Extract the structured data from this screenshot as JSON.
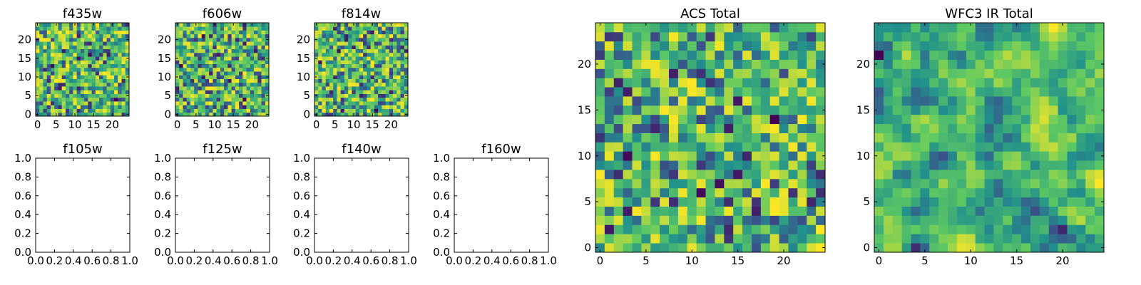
{
  "figure": {
    "background": "#ffffff"
  },
  "colormap": {
    "name": "viridis",
    "stops": [
      "#440154",
      "#3b528b",
      "#21918c",
      "#5ec962",
      "#fde725"
    ]
  },
  "chart_data": [
    {
      "type": "heatmap",
      "title": "f435w",
      "grid": false,
      "shape": [
        25,
        25
      ],
      "xlim": [
        -0.5,
        24.5
      ],
      "ylim": [
        -0.5,
        24.5
      ],
      "xticks": [
        "0",
        "5",
        "10",
        "15",
        "20"
      ],
      "yticks": [
        "0",
        "5",
        "10",
        "15",
        "20"
      ],
      "seed": 11,
      "field": "uniform-noise"
    },
    {
      "type": "heatmap",
      "title": "f606w",
      "grid": false,
      "shape": [
        25,
        25
      ],
      "xlim": [
        -0.5,
        24.5
      ],
      "ylim": [
        -0.5,
        24.5
      ],
      "xticks": [
        "0",
        "5",
        "10",
        "15",
        "20"
      ],
      "yticks": [
        "0",
        "5",
        "10",
        "15",
        "20"
      ],
      "seed": 23,
      "field": "uniform-noise"
    },
    {
      "type": "heatmap",
      "title": "f814w",
      "grid": false,
      "shape": [
        25,
        25
      ],
      "xlim": [
        -0.5,
        24.5
      ],
      "ylim": [
        -0.5,
        24.5
      ],
      "xticks": [
        "0",
        "5",
        "10",
        "15",
        "20"
      ],
      "yticks": [
        "0",
        "5",
        "10",
        "15",
        "20"
      ],
      "seed": 37,
      "field": "uniform-noise"
    },
    {
      "type": "empty",
      "title": "f105w",
      "xlim": [
        0,
        1
      ],
      "ylim": [
        0,
        1
      ],
      "xticks": [
        "0.0",
        "0.2",
        "0.4",
        "0.6",
        "0.8",
        "1.0"
      ],
      "yticks": [
        "0.0",
        "0.2",
        "0.4",
        "0.6",
        "0.8",
        "1.0"
      ]
    },
    {
      "type": "empty",
      "title": "f125w",
      "xlim": [
        0,
        1
      ],
      "ylim": [
        0,
        1
      ],
      "xticks": [
        "0.0",
        "0.2",
        "0.4",
        "0.6",
        "0.8",
        "1.0"
      ],
      "yticks": [
        "0.0",
        "0.2",
        "0.4",
        "0.6",
        "0.8",
        "1.0"
      ]
    },
    {
      "type": "empty",
      "title": "f140w",
      "xlim": [
        0,
        1
      ],
      "ylim": [
        0,
        1
      ],
      "xticks": [
        "0.0",
        "0.2",
        "0.4",
        "0.6",
        "0.8",
        "1.0"
      ],
      "yticks": [
        "0.0",
        "0.2",
        "0.4",
        "0.6",
        "0.8",
        "1.0"
      ]
    },
    {
      "type": "empty",
      "title": "f160w",
      "xlim": [
        0,
        1
      ],
      "ylim": [
        0,
        1
      ],
      "xticks": [
        "0.0",
        "0.2",
        "0.4",
        "0.6",
        "0.8",
        "1.0"
      ],
      "yticks": [
        "0.0",
        "0.2",
        "0.4",
        "0.6",
        "0.8",
        "1.0"
      ]
    },
    {
      "type": "heatmap",
      "title": "ACS Total",
      "grid": false,
      "shape": [
        25,
        25
      ],
      "xlim": [
        -0.5,
        24.5
      ],
      "ylim": [
        -0.5,
        24.5
      ],
      "xticks": [
        "0",
        "5",
        "10",
        "15",
        "20"
      ],
      "yticks": [
        "0",
        "5",
        "10",
        "15",
        "20"
      ],
      "seed": 51,
      "field": "uniform-noise"
    },
    {
      "type": "heatmap",
      "title": "WFC3 IR Total",
      "grid": false,
      "shape": [
        25,
        25
      ],
      "xlim": [
        -0.5,
        24.5
      ],
      "ylim": [
        -0.5,
        24.5
      ],
      "xticks": [
        "0",
        "5",
        "10",
        "15",
        "20"
      ],
      "yticks": [
        "0",
        "5",
        "10",
        "15",
        "20"
      ],
      "seed": 73,
      "field": "smoothed-noise"
    }
  ]
}
